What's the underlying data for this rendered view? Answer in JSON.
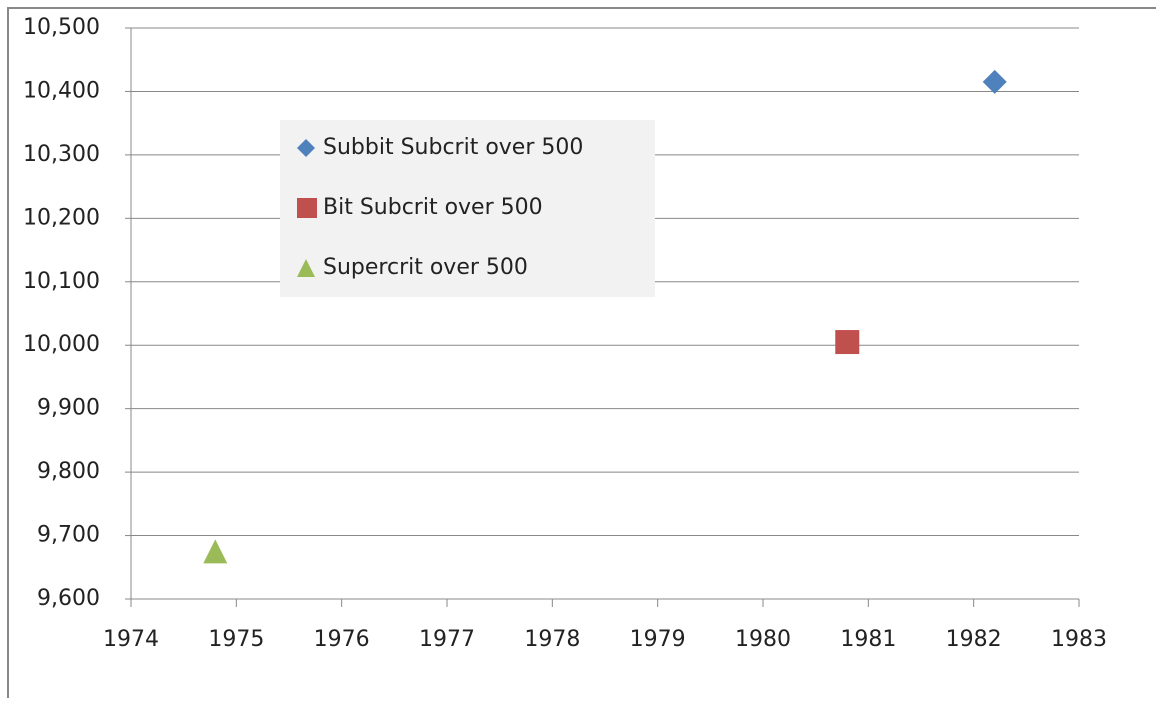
{
  "chart_data": {
    "type": "scatter",
    "series": [
      {
        "name": "Subbit Subcrit over 500",
        "color": "#4f81bd",
        "marker": "diamond",
        "x": [
          1982.2
        ],
        "values": [
          10415
        ]
      },
      {
        "name": "Bit Subcrit over 500",
        "color": "#c0504d",
        "marker": "square",
        "x": [
          1980.8
        ],
        "values": [
          10005
        ]
      },
      {
        "name": "Supercrit over 500",
        "color": "#9bbb59",
        "marker": "triangle",
        "x": [
          1974.8
        ],
        "values": [
          9675
        ]
      }
    ],
    "xlim": [
      1974,
      1983
    ],
    "xticks": [
      1974,
      1975,
      1976,
      1977,
      1978,
      1979,
      1980,
      1981,
      1982,
      1983
    ],
    "ylim": [
      9600,
      10500
    ],
    "yticks": [
      {
        "value": 9600,
        "label": "9,600"
      },
      {
        "value": 9700,
        "label": "9,700"
      },
      {
        "value": 9800,
        "label": "9,800"
      },
      {
        "value": 9900,
        "label": "9,900"
      },
      {
        "value": 10000,
        "label": "10,000"
      },
      {
        "value": 10100,
        "label": "10,100"
      },
      {
        "value": 10200,
        "label": "10,200"
      },
      {
        "value": 10300,
        "label": "10,300"
      },
      {
        "value": 10400,
        "label": "10,400"
      },
      {
        "value": 10500,
        "label": "10,500"
      }
    ],
    "grid": true
  }
}
